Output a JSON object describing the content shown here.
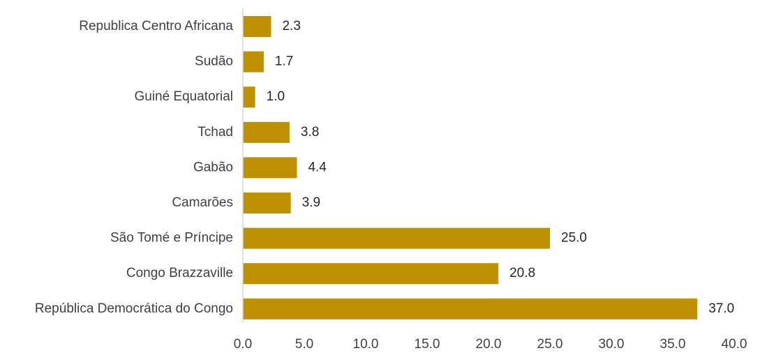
{
  "chart_data": {
    "type": "bar",
    "orientation": "horizontal",
    "categories": [
      "Republica Centro Africana",
      "Sudão",
      "Guiné Equatorial",
      "Tchad",
      "Gabão",
      "Camarões",
      "São Tomé e Príncipe",
      "Congo Brazzaville",
      "República Democrática do Congo"
    ],
    "values": [
      2.3,
      1.7,
      1.0,
      3.8,
      4.4,
      3.9,
      25.0,
      20.8,
      37.0
    ],
    "value_labels": [
      "2.3",
      "1.7",
      "1.0",
      "3.8",
      "4.4",
      "3.9",
      "25.0",
      "20.8",
      "37.0"
    ],
    "xlim": [
      0,
      40
    ],
    "x_ticks": [
      0,
      5,
      10,
      15,
      20,
      25,
      30,
      35,
      40
    ],
    "x_tick_labels": [
      "0.0",
      "5.0",
      "10.0",
      "15.0",
      "20.0",
      "25.0",
      "30.0",
      "35.0",
      "40.0"
    ],
    "bar_color": "#BF9000",
    "axis_color": "#D9D9D9",
    "grid": false,
    "legend": "none"
  }
}
